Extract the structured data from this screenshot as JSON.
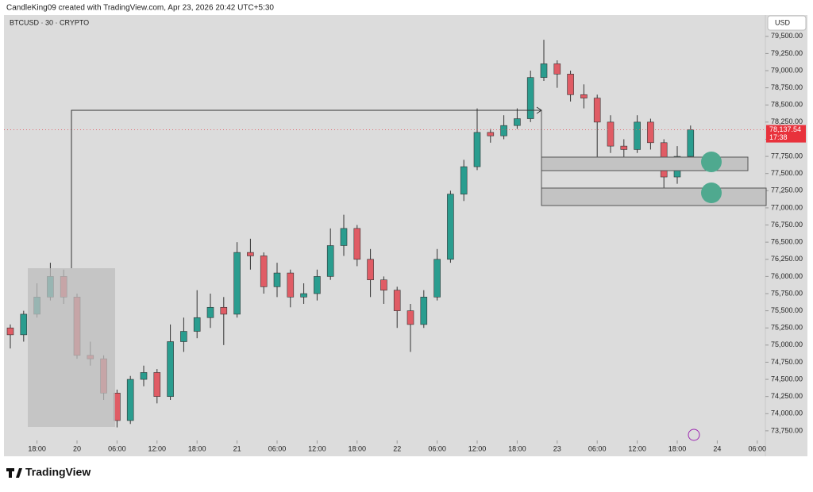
{
  "chart_data": {
    "type": "candlestick",
    "attribution": "CandleKing09 created with TradingView.com, Apr 23, 2026 20:42 UTC+5:30",
    "symbol": "BTCUSD · 30 · CRYPTO",
    "currency": "USD",
    "logo": "TradingView",
    "up_color": "#2a9d8f",
    "down_color": "#e05c65",
    "last_price": {
      "value": 78137.54,
      "label": "78,137.54"
    },
    "countdown": "17:38",
    "ylim": [
      73610,
      79810
    ],
    "yticks": [
      {
        "value": 73750,
        "label": "73,750.00"
      },
      {
        "value": 74000,
        "label": "74,000.00"
      },
      {
        "value": 74250,
        "label": "74,250.00"
      },
      {
        "value": 74500,
        "label": "74,500.00"
      },
      {
        "value": 74750,
        "label": "74,750.00"
      },
      {
        "value": 75000,
        "label": "75,000.00"
      },
      {
        "value": 75250,
        "label": "75,250.00"
      },
      {
        "value": 75500,
        "label": "75,500.00"
      },
      {
        "value": 75750,
        "label": "75,750.00"
      },
      {
        "value": 76000,
        "label": "76,000.00"
      },
      {
        "value": 76250,
        "label": "76,250.00"
      },
      {
        "value": 76500,
        "label": "76,500.00"
      },
      {
        "value": 76750,
        "label": "76,750.00"
      },
      {
        "value": 77000,
        "label": "77,000.00"
      },
      {
        "value": 77250,
        "label": "77,250.00"
      },
      {
        "value": 77500,
        "label": "77,500.00"
      },
      {
        "value": 77750,
        "label": "77,750.00"
      },
      {
        "value": 78000,
        "label": "78,000.00"
      },
      {
        "value": 78250,
        "label": "78,250.00"
      },
      {
        "value": 78500,
        "label": "78,500.00"
      },
      {
        "value": 78750,
        "label": "78,750.00"
      },
      {
        "value": 79000,
        "label": "79,000.00"
      },
      {
        "value": 79250,
        "label": "79,250.00"
      },
      {
        "value": 79500,
        "label": "79,500.00"
      }
    ],
    "xticks": [
      {
        "value": "19 18:00",
        "label": "18:00"
      },
      {
        "value": "20 00:00",
        "label": "20"
      },
      {
        "value": "20 06:00",
        "label": "06:00"
      },
      {
        "value": "20 12:00",
        "label": "12:00"
      },
      {
        "value": "20 18:00",
        "label": "18:00"
      },
      {
        "value": "21 00:00",
        "label": "21"
      },
      {
        "value": "21 06:00",
        "label": "06:00"
      },
      {
        "value": "21 12:00",
        "label": "12:00"
      },
      {
        "value": "21 18:00",
        "label": "18:00"
      },
      {
        "value": "22 00:00",
        "label": "22"
      },
      {
        "value": "22 06:00",
        "label": "06:00"
      },
      {
        "value": "22 12:00",
        "label": "12:00"
      },
      {
        "value": "22 18:00",
        "label": "18:00"
      },
      {
        "value": "23 00:00",
        "label": "23"
      },
      {
        "value": "23 06:00",
        "label": "06:00"
      },
      {
        "value": "23 12:00",
        "label": "12:00"
      },
      {
        "value": "23 18:00",
        "label": "18:00"
      },
      {
        "value": "24 00:00",
        "label": "24"
      },
      {
        "value": "24 06:00",
        "label": "06:00"
      }
    ],
    "x": [
      "19 14:00",
      "19 16:00",
      "19 18:00",
      "19 20:00",
      "19 22:00",
      "20 00:00",
      "20 02:00",
      "20 04:00",
      "20 06:00",
      "20 08:00",
      "20 10:00",
      "20 12:00",
      "20 14:00",
      "20 16:00",
      "20 18:00",
      "20 20:00",
      "20 22:00",
      "21 00:00",
      "21 02:00",
      "21 04:00",
      "21 06:00",
      "21 08:00",
      "21 10:00",
      "21 12:00",
      "21 14:00",
      "21 16:00",
      "21 18:00",
      "21 20:00",
      "21 22:00",
      "22 00:00",
      "22 02:00",
      "22 04:00",
      "22 06:00",
      "22 08:00",
      "22 10:00",
      "22 12:00",
      "22 14:00",
      "22 16:00",
      "22 18:00",
      "22 20:00",
      "22 22:00",
      "23 00:00",
      "23 02:00",
      "23 04:00",
      "23 06:00",
      "23 08:00",
      "23 10:00",
      "23 12:00",
      "23 14:00",
      "23 16:00",
      "23 18:00",
      "23 20:00"
    ],
    "open": [
      75250,
      75150,
      75450,
      75700,
      76000,
      75700,
      74850,
      74800,
      74300,
      73900,
      74500,
      74600,
      74250,
      75050,
      75200,
      75400,
      75550,
      75450,
      76350,
      76300,
      75850,
      76050,
      75700,
      75750,
      76000,
      76450,
      76700,
      76250,
      75950,
      75800,
      75500,
      75300,
      75700,
      76250,
      77200,
      77600,
      78100,
      78050,
      78200,
      78300,
      78900,
      79100,
      78950,
      78650,
      78600,
      78250,
      77900,
      77850,
      78250,
      77950,
      77450,
      77750
    ],
    "high": [
      75300,
      75500,
      75900,
      76200,
      76100,
      75750,
      75050,
      74850,
      74350,
      74550,
      74700,
      74650,
      75300,
      75400,
      75800,
      75750,
      75700,
      76500,
      76550,
      76350,
      76200,
      76100,
      75900,
      76100,
      76700,
      76900,
      76750,
      76400,
      76000,
      75850,
      75600,
      75800,
      76400,
      77250,
      77700,
      78450,
      78150,
      78350,
      78450,
      79000,
      79450,
      79150,
      79000,
      78800,
      78650,
      78350,
      78000,
      78350,
      78300,
      78000,
      77900,
      78200
    ],
    "low": [
      74950,
      75050,
      75400,
      75650,
      75600,
      74800,
      74700,
      74200,
      73800,
      73850,
      74400,
      74150,
      74200,
      74900,
      75100,
      75250,
      75000,
      75400,
      76100,
      75750,
      75700,
      75550,
      75600,
      75650,
      75950,
      76300,
      76150,
      75700,
      75600,
      75250,
      74900,
      75250,
      75650,
      76200,
      77100,
      77550,
      77950,
      78000,
      78150,
      78250,
      78850,
      78750,
      78550,
      78450,
      77650,
      77800,
      77550,
      77800,
      77850,
      77250,
      77350,
      77700
    ],
    "close": [
      75150,
      75450,
      75700,
      76000,
      75700,
      74850,
      74800,
      74300,
      73900,
      74500,
      74600,
      74250,
      75050,
      75200,
      75400,
      75550,
      75450,
      76350,
      76300,
      75850,
      76050,
      75700,
      75750,
      76000,
      76450,
      76700,
      76250,
      75950,
      75800,
      75500,
      75300,
      75700,
      76250,
      77200,
      77600,
      78100,
      78050,
      78200,
      78300,
      78900,
      79100,
      78950,
      78650,
      78600,
      78250,
      77900,
      77850,
      78250,
      77950,
      77450,
      77750,
      78137.54
    ]
  }
}
